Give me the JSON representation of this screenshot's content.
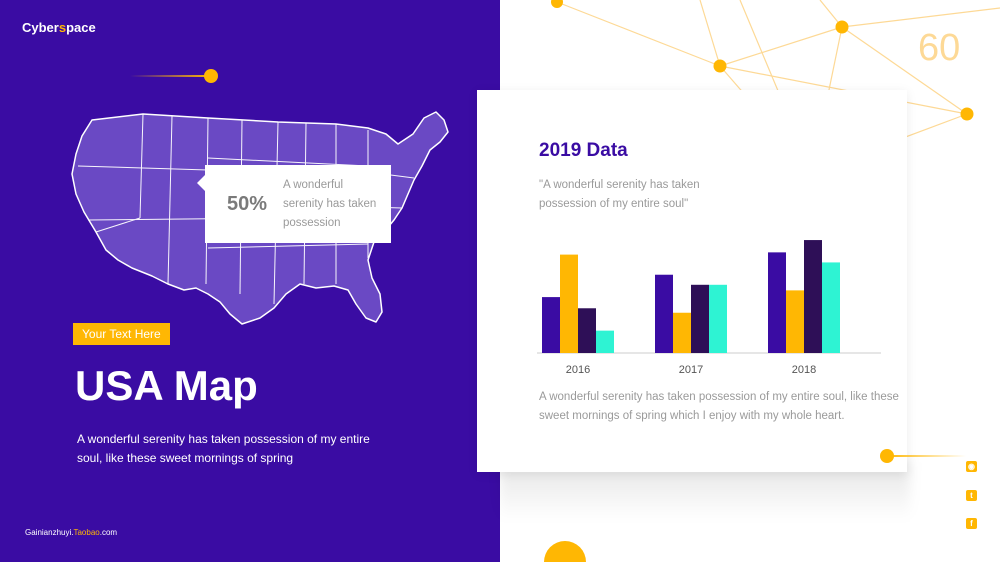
{
  "brand": {
    "prefix": "Cyber",
    "accent": "s",
    "suffix": "pace"
  },
  "slide_number": "60",
  "map": {
    "callout_percent": "50%",
    "callout_text": "A wonderful serenity has taken possession"
  },
  "tag_label": "Your Text Here",
  "title": "USA Map",
  "subtitle": "A wonderful serenity has taken possession of my entire soul, like these sweet mornings of spring",
  "footer": {
    "prefix": "Gainianzhuyi.",
    "accent": "Taobao",
    "suffix": ".com"
  },
  "card": {
    "title": "2019 Data",
    "quote": "\"A wonderful serenity has taken possession of my entire soul\"",
    "description": "A wonderful serenity has taken possession of my entire soul, like these sweet mornings of spring which I enjoy with my whole heart."
  },
  "chart_data": {
    "type": "bar",
    "categories": [
      "2016",
      "2017",
      "2018"
    ],
    "series": [
      {
        "color": "#3a0ca3",
        "values": [
          50,
          70,
          90
        ]
      },
      {
        "color": "#ffb703",
        "values": [
          88,
          36,
          56
        ]
      },
      {
        "color": "#2e0f57",
        "values": [
          40,
          61,
          101
        ]
      },
      {
        "color": "#2ef3d3",
        "values": [
          20,
          61,
          81
        ]
      }
    ],
    "ylim": [
      0,
      110
    ],
    "grid": false,
    "legend": "none"
  },
  "social_icons": [
    "rss-icon",
    "twitter-icon",
    "facebook-icon"
  ],
  "colors": {
    "primary": "#3a0ca3",
    "accent": "#ffb703",
    "teal": "#2ef3d3",
    "dark": "#2e0f57"
  }
}
